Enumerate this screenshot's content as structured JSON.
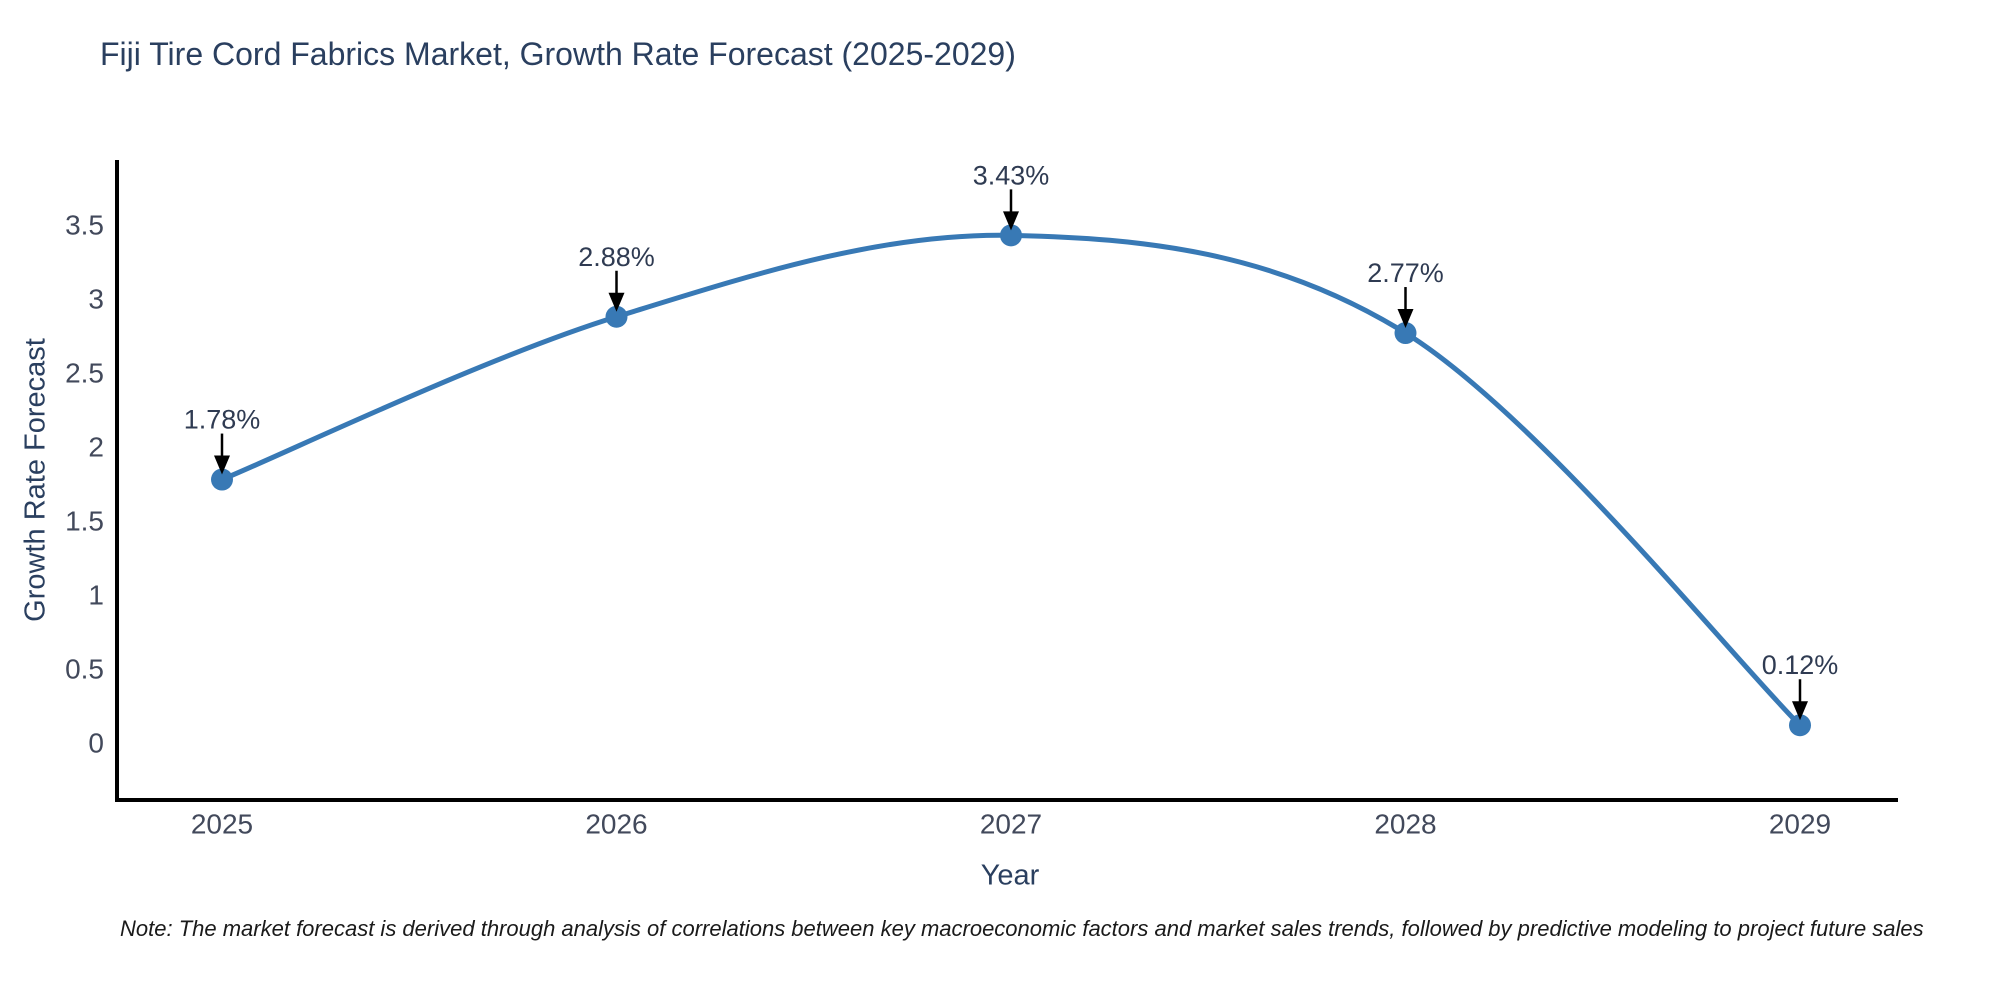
{
  "chart_data": {
    "type": "line",
    "line_shape": "spline",
    "title": "Fiji Tire Cord Fabrics Market, Growth Rate Forecast (2025-2029)",
    "xlabel": "Year",
    "ylabel": "Growth Rate Forecast",
    "categories": [
      "2025",
      "2026",
      "2027",
      "2028",
      "2029"
    ],
    "values": [
      1.78,
      2.88,
      3.43,
      2.77,
      0.12
    ],
    "point_labels": [
      "1.78%",
      "2.88%",
      "3.43%",
      "2.77%",
      "0.12%"
    ],
    "ytick_values": [
      3.5,
      3,
      2.5,
      2,
      1.5,
      1,
      0.5,
      0
    ],
    "ytick_labels": [
      "3.5",
      "3",
      "2.5",
      "2",
      "1.5",
      "1",
      "0.5",
      "0"
    ],
    "ylim": [
      0,
      3.5
    ],
    "grid": false,
    "legend": false,
    "note": "Note: The market forecast is derived through analysis of correlations between key macroeconomic factors and market sales trends, followed by predictive modeling to project future sales",
    "colors": {
      "line": "#3879b5",
      "marker": "#3879b5",
      "annotation_text": "#2f3b52",
      "annotation_arrow": "#000000",
      "axis_line": "#000000",
      "title_text": "#2a3f5f",
      "tick_text": "#42495b",
      "note_text": "#1a1a1a"
    }
  }
}
